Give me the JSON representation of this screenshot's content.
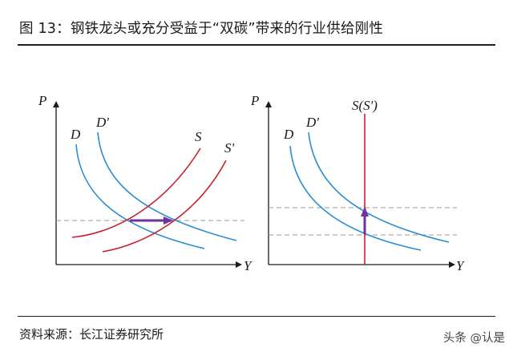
{
  "figure": {
    "title": "图 13：钢铁龙头或充分受益于“双碳”带来的行业供给刚性",
    "source": "资料来源：长江证券研究所",
    "watermark": "头条 @认是"
  },
  "left_panel": {
    "axis_y": "P",
    "axis_x": "Y",
    "labels": {
      "d": "D",
      "d_prime": "D'",
      "s": "S",
      "s_prime": "S'"
    }
  },
  "right_panel": {
    "axis_y": "P",
    "axis_x": "Y",
    "labels": {
      "d": "D",
      "d_prime": "D'",
      "s": "S(S')"
    }
  },
  "colors": {
    "demand": "#2a8fd0",
    "supply": "#c8202c",
    "arrow": "#7030a0",
    "axis": "#1a1a1a",
    "guide": "#9a9a9a"
  }
}
